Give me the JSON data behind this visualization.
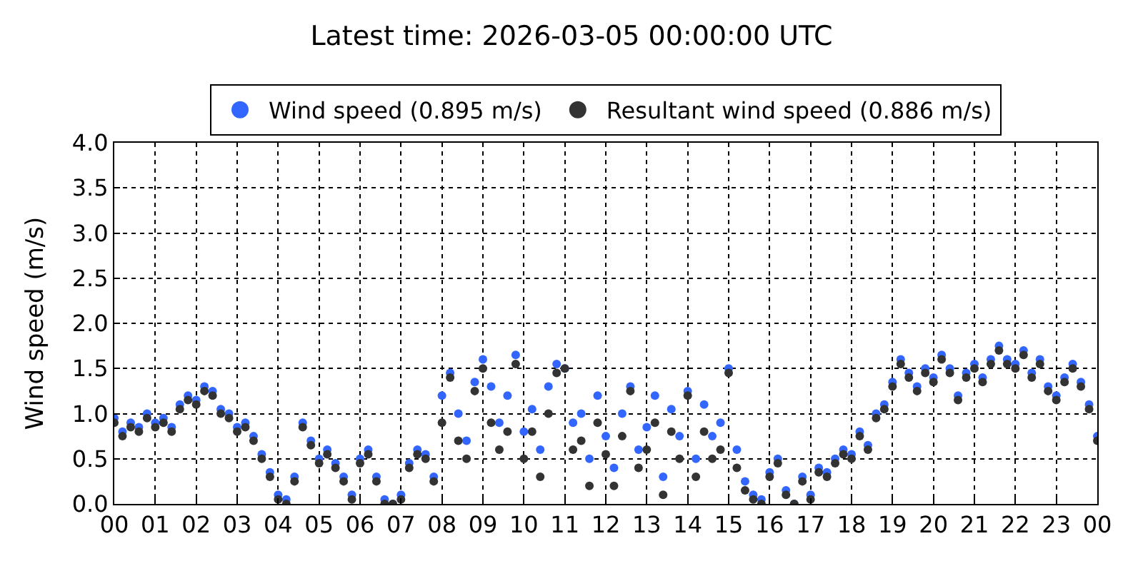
{
  "chart_data": {
    "type": "scatter",
    "title": "Latest time: 2026-03-05 00:00:00 UTC",
    "ylabel": "Wind speed (m/s)",
    "x": [
      0.0,
      0.2,
      0.4,
      0.6,
      0.8,
      1.0,
      1.2,
      1.4,
      1.6,
      1.8,
      2.0,
      2.2,
      2.4,
      2.6,
      2.8,
      3.0,
      3.2,
      3.4,
      3.6,
      3.8,
      4.0,
      4.2,
      4.4,
      4.6,
      4.8,
      5.0,
      5.2,
      5.4,
      5.6,
      5.8,
      6.0,
      6.2,
      6.4,
      6.6,
      6.8,
      7.0,
      7.2,
      7.4,
      7.6,
      7.8,
      8.0,
      8.2,
      8.4,
      8.6,
      8.8,
      9.0,
      9.2,
      9.4,
      9.6,
      9.8,
      10.0,
      10.2,
      10.4,
      10.6,
      10.8,
      11.0,
      11.2,
      11.4,
      11.6,
      11.8,
      12.0,
      12.2,
      12.4,
      12.6,
      12.8,
      13.0,
      13.2,
      13.4,
      13.6,
      13.8,
      14.0,
      14.2,
      14.4,
      14.6,
      14.8,
      15.0,
      15.2,
      15.4,
      15.6,
      15.8,
      16.0,
      16.2,
      16.4,
      16.6,
      16.8,
      17.0,
      17.2,
      17.4,
      17.6,
      17.8,
      18.0,
      18.2,
      18.4,
      18.6,
      18.8,
      19.0,
      19.2,
      19.4,
      19.6,
      19.8,
      20.0,
      20.2,
      20.4,
      20.6,
      20.8,
      21.0,
      21.2,
      21.4,
      21.6,
      21.8,
      22.0,
      22.2,
      22.4,
      22.6,
      22.8,
      23.0,
      23.2,
      23.4,
      23.6,
      23.8,
      24.0
    ],
    "series": [
      {
        "name": "Wind speed (0.895 m/s)",
        "color": "#3366ff",
        "values": [
          0.95,
          0.8,
          0.9,
          0.85,
          1.0,
          0.9,
          0.95,
          0.85,
          1.1,
          1.2,
          1.15,
          1.3,
          1.25,
          1.05,
          1.0,
          0.85,
          0.9,
          0.75,
          0.55,
          0.35,
          0.1,
          0.05,
          0.3,
          0.9,
          0.7,
          0.5,
          0.6,
          0.45,
          0.3,
          0.1,
          0.5,
          0.6,
          0.3,
          0.05,
          0.0,
          0.1,
          0.45,
          0.6,
          0.55,
          0.3,
          1.2,
          1.45,
          1.0,
          0.7,
          1.35,
          1.6,
          1.3,
          0.9,
          1.2,
          1.65,
          0.8,
          1.05,
          0.6,
          1.3,
          1.55,
          1.5,
          0.9,
          1.0,
          0.5,
          1.2,
          0.75,
          0.4,
          1.0,
          1.3,
          0.6,
          0.85,
          1.2,
          0.3,
          1.05,
          0.75,
          1.25,
          0.5,
          1.1,
          0.75,
          0.9,
          1.5,
          0.6,
          0.25,
          0.1,
          0.05,
          0.35,
          0.5,
          0.15,
          0.0,
          0.3,
          0.1,
          0.4,
          0.35,
          0.5,
          0.6,
          0.55,
          0.8,
          0.65,
          1.0,
          1.1,
          1.35,
          1.6,
          1.45,
          1.3,
          1.5,
          1.4,
          1.65,
          1.5,
          1.2,
          1.45,
          1.55,
          1.4,
          1.6,
          1.75,
          1.6,
          1.55,
          1.7,
          1.45,
          1.6,
          1.3,
          1.2,
          1.4,
          1.55,
          1.35,
          1.1,
          0.75
        ]
      },
      {
        "name": "Resultant wind speed (0.886 m/s)",
        "color": "#333333",
        "values": [
          0.9,
          0.75,
          0.85,
          0.8,
          0.95,
          0.85,
          0.9,
          0.8,
          1.05,
          1.15,
          1.1,
          1.25,
          1.2,
          1.0,
          0.95,
          0.8,
          0.85,
          0.7,
          0.5,
          0.3,
          0.05,
          0.0,
          0.25,
          0.85,
          0.65,
          0.45,
          0.55,
          0.4,
          0.25,
          0.05,
          0.45,
          0.55,
          0.25,
          0.0,
          0.0,
          0.05,
          0.4,
          0.55,
          0.5,
          0.25,
          0.9,
          1.4,
          0.7,
          0.5,
          1.25,
          1.5,
          0.9,
          0.6,
          0.8,
          1.55,
          0.5,
          0.8,
          0.3,
          1.0,
          1.45,
          1.5,
          0.6,
          0.7,
          0.2,
          0.9,
          0.55,
          0.2,
          0.75,
          1.25,
          0.4,
          0.6,
          0.9,
          0.1,
          0.8,
          0.5,
          1.2,
          0.3,
          0.8,
          0.5,
          0.6,
          1.45,
          0.4,
          0.15,
          0.05,
          0.0,
          0.3,
          0.45,
          0.1,
          0.0,
          0.25,
          0.05,
          0.35,
          0.3,
          0.45,
          0.55,
          0.5,
          0.75,
          0.6,
          0.95,
          1.05,
          1.3,
          1.55,
          1.4,
          1.25,
          1.45,
          1.35,
          1.6,
          1.45,
          1.15,
          1.4,
          1.5,
          1.35,
          1.55,
          1.7,
          1.55,
          1.5,
          1.65,
          1.4,
          1.55,
          1.25,
          1.15,
          1.35,
          1.5,
          1.3,
          1.05,
          0.7
        ]
      }
    ],
    "xlim": [
      0,
      24
    ],
    "xticks": [
      {
        "value": 0,
        "label": "00"
      },
      {
        "value": 1,
        "label": "01"
      },
      {
        "value": 2,
        "label": "02"
      },
      {
        "value": 3,
        "label": "03"
      },
      {
        "value": 4,
        "label": "04"
      },
      {
        "value": 5,
        "label": "05"
      },
      {
        "value": 6,
        "label": "06"
      },
      {
        "value": 7,
        "label": "07"
      },
      {
        "value": 8,
        "label": "08"
      },
      {
        "value": 9,
        "label": "09"
      },
      {
        "value": 10,
        "label": "10"
      },
      {
        "value": 11,
        "label": "11"
      },
      {
        "value": 12,
        "label": "12"
      },
      {
        "value": 13,
        "label": "13"
      },
      {
        "value": 14,
        "label": "14"
      },
      {
        "value": 15,
        "label": "15"
      },
      {
        "value": 16,
        "label": "16"
      },
      {
        "value": 17,
        "label": "17"
      },
      {
        "value": 18,
        "label": "18"
      },
      {
        "value": 19,
        "label": "19"
      },
      {
        "value": 20,
        "label": "20"
      },
      {
        "value": 21,
        "label": "21"
      },
      {
        "value": 22,
        "label": "22"
      },
      {
        "value": 23,
        "label": "23"
      },
      {
        "value": 24,
        "label": "00"
      }
    ],
    "ylim": [
      0,
      4
    ],
    "yticks": [
      {
        "value": 0,
        "label": "0.0"
      },
      {
        "value": 0.5,
        "label": "0.5"
      },
      {
        "value": 1,
        "label": "1.0"
      },
      {
        "value": 1.5,
        "label": "1.5"
      },
      {
        "value": 2,
        "label": "2.0"
      },
      {
        "value": 2.5,
        "label": "2.5"
      },
      {
        "value": 3,
        "label": "3.0"
      },
      {
        "value": 3.5,
        "label": "3.5"
      },
      {
        "value": 4,
        "label": "4.0"
      }
    ],
    "grid": true,
    "legend": "top",
    "marker": "circle"
  }
}
